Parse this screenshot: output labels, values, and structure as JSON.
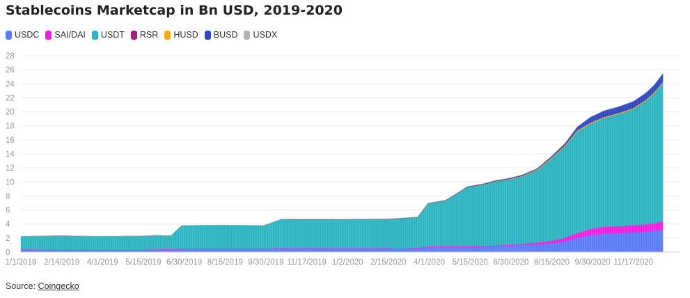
{
  "chart_data": {
    "type": "area",
    "stacked": true,
    "title": "Stablecoins Marketcap in Bn USD, 2019-2020",
    "xlabel": "",
    "ylabel": "",
    "ylim": [
      0,
      28
    ],
    "yticks": [
      0,
      2,
      4,
      6,
      8,
      10,
      12,
      14,
      16,
      18,
      20,
      22,
      24,
      26,
      28
    ],
    "xticks": [
      "1/1/2019",
      "2/14/2019",
      "4/1/2019",
      "5/15/2019",
      "6/30/2019",
      "8/15/2019",
      "9/30/2019",
      "11/17/2019",
      "1/2/2020",
      "2/15/2020",
      "4/1/2020",
      "5/15/2020",
      "6/30/2020",
      "8/15/2020",
      "9/30/2020",
      "11/17/2020"
    ],
    "grid": true,
    "legend_position": "top-left",
    "x": [
      "2019-01-01",
      "2019-02-14",
      "2019-04-01",
      "2019-05-15",
      "2019-06-01",
      "2019-06-18",
      "2019-06-30",
      "2019-08-15",
      "2019-09-30",
      "2019-10-20",
      "2019-11-17",
      "2020-01-02",
      "2020-02-15",
      "2020-03-01",
      "2020-03-20",
      "2020-04-01",
      "2020-04-20",
      "2020-05-01",
      "2020-05-15",
      "2020-06-01",
      "2020-06-15",
      "2020-06-30",
      "2020-07-15",
      "2020-08-01",
      "2020-08-15",
      "2020-09-01",
      "2020-09-15",
      "2020-09-30",
      "2020-10-15",
      "2020-11-01",
      "2020-11-17",
      "2020-12-01",
      "2020-12-10",
      "2020-12-20"
    ],
    "series": [
      {
        "name": "USDC",
        "color": "#5b7cf7",
        "values": [
          0.3,
          0.25,
          0.25,
          0.25,
          0.3,
          0.35,
          0.4,
          0.45,
          0.45,
          0.5,
          0.5,
          0.5,
          0.5,
          0.45,
          0.5,
          0.7,
          0.7,
          0.7,
          0.7,
          0.75,
          0.8,
          0.9,
          1.0,
          1.1,
          1.2,
          1.5,
          2.0,
          2.4,
          2.6,
          2.7,
          2.8,
          2.9,
          3.0,
          3.2
        ]
      },
      {
        "name": "SAI/DAI",
        "color": "#f21de0",
        "values": [
          0.08,
          0.08,
          0.08,
          0.08,
          0.08,
          0.08,
          0.08,
          0.08,
          0.08,
          0.08,
          0.08,
          0.08,
          0.08,
          0.08,
          0.1,
          0.1,
          0.1,
          0.1,
          0.12,
          0.12,
          0.12,
          0.13,
          0.15,
          0.25,
          0.35,
          0.5,
          0.7,
          0.9,
          1.0,
          1.0,
          1.0,
          1.05,
          1.1,
          1.2
        ]
      },
      {
        "name": "USDT",
        "color": "#2cb5c0",
        "values": [
          1.85,
          2.0,
          1.9,
          1.95,
          2.0,
          1.9,
          3.3,
          3.3,
          3.25,
          4.1,
          4.1,
          4.1,
          4.1,
          4.25,
          4.3,
          6.1,
          6.5,
          7.3,
          8.4,
          8.7,
          9.1,
          9.3,
          9.6,
          10.3,
          11.5,
          13.0,
          14.5,
          15.0,
          15.5,
          16.0,
          16.6,
          17.6,
          18.5,
          19.7
        ]
      },
      {
        "name": "RSR",
        "color": "#a3227a",
        "values": [
          0,
          0,
          0,
          0,
          0,
          0,
          0,
          0,
          0,
          0,
          0,
          0,
          0,
          0,
          0,
          0,
          0,
          0,
          0,
          0,
          0,
          0,
          0,
          0,
          0,
          0,
          0,
          0,
          0,
          0,
          0,
          0,
          0,
          0
        ]
      },
      {
        "name": "HUSD",
        "color": "#fbaa1a",
        "values": [
          0,
          0,
          0,
          0,
          0,
          0,
          0,
          0,
          0,
          0,
          0,
          0,
          0,
          0,
          0.02,
          0.02,
          0.03,
          0.03,
          0.03,
          0.04,
          0.05,
          0.06,
          0.08,
          0.1,
          0.15,
          0.15,
          0.15,
          0.15,
          0.15,
          0.15,
          0.15,
          0.15,
          0.15,
          0.15
        ]
      },
      {
        "name": "BUSD",
        "color": "#2e47c4",
        "values": [
          0,
          0,
          0,
          0,
          0,
          0,
          0,
          0,
          0,
          0.02,
          0.02,
          0.02,
          0.03,
          0.05,
          0.05,
          0.05,
          0.05,
          0.06,
          0.08,
          0.1,
          0.12,
          0.12,
          0.15,
          0.15,
          0.2,
          0.3,
          0.5,
          0.8,
          0.9,
          0.9,
          0.95,
          1.0,
          1.05,
          1.2
        ]
      },
      {
        "name": "USDX",
        "color": "#b3b3b3",
        "values": [
          0.02,
          0.02,
          0.02,
          0.02,
          0.02,
          0.02,
          0.02,
          0.02,
          0.02,
          0.02,
          0.02,
          0.02,
          0.02,
          0.02,
          0.02,
          0.02,
          0.02,
          0.02,
          0.02,
          0.02,
          0.02,
          0.02,
          0.02,
          0.02,
          0.02,
          0.02,
          0.02,
          0.02,
          0.02,
          0.02,
          0.02,
          0.02,
          0.02,
          0.02
        ]
      }
    ],
    "annotations": [],
    "source_label": "Source:",
    "source_link": "Coingecko"
  }
}
